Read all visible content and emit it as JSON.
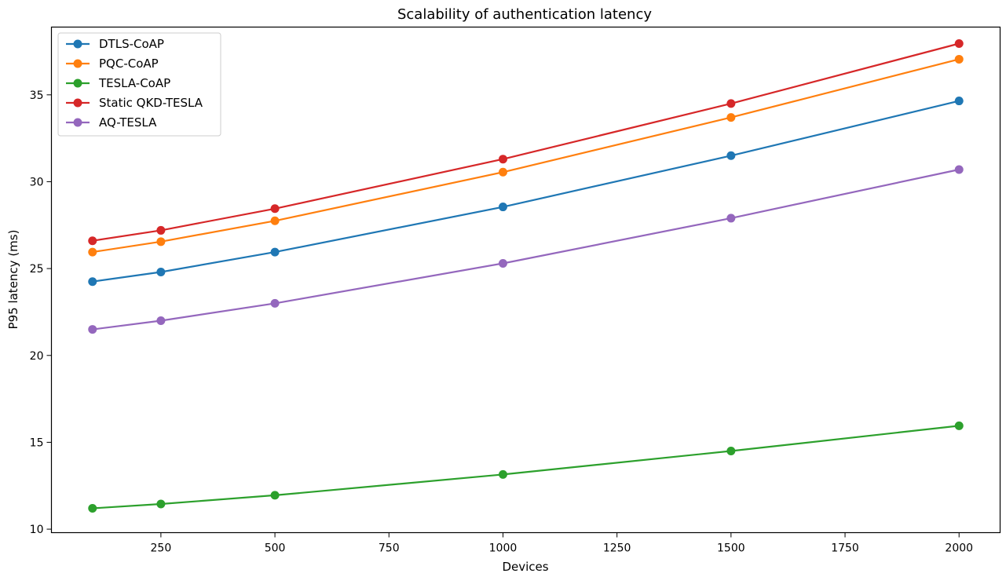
{
  "chart_data": {
    "type": "line",
    "title": "Scalability of authentication latency",
    "xlabel": "Devices",
    "ylabel": "P95 latency (ms)",
    "x": [
      100,
      250,
      500,
      1000,
      1500,
      2000
    ],
    "xlim": [
      10,
      2090
    ],
    "ylim": [
      9.8,
      38.9
    ],
    "xticks": [
      250,
      500,
      750,
      1000,
      1250,
      1500,
      1750,
      2000
    ],
    "yticks": [
      10,
      15,
      20,
      25,
      30,
      35
    ],
    "grid": false,
    "legend": "top-left",
    "series": [
      {
        "name": "DTLS-CoAP",
        "color": "#1f77b4",
        "values": [
          24.25,
          24.8,
          25.95,
          28.55,
          31.5,
          34.65
        ]
      },
      {
        "name": "PQC-CoAP",
        "color": "#ff7f0e",
        "values": [
          25.95,
          26.55,
          27.75,
          30.55,
          33.7,
          37.05
        ]
      },
      {
        "name": "TESLA-CoAP",
        "color": "#2ca02c",
        "values": [
          11.2,
          11.45,
          11.95,
          13.15,
          14.5,
          15.95
        ]
      },
      {
        "name": "Static QKD-TESLA",
        "color": "#d62728",
        "values": [
          26.6,
          27.2,
          28.45,
          31.3,
          34.5,
          37.95
        ]
      },
      {
        "name": "AQ-TESLA",
        "color": "#9467bd",
        "values": [
          21.5,
          22.0,
          23.0,
          25.3,
          27.9,
          30.7
        ]
      }
    ]
  }
}
